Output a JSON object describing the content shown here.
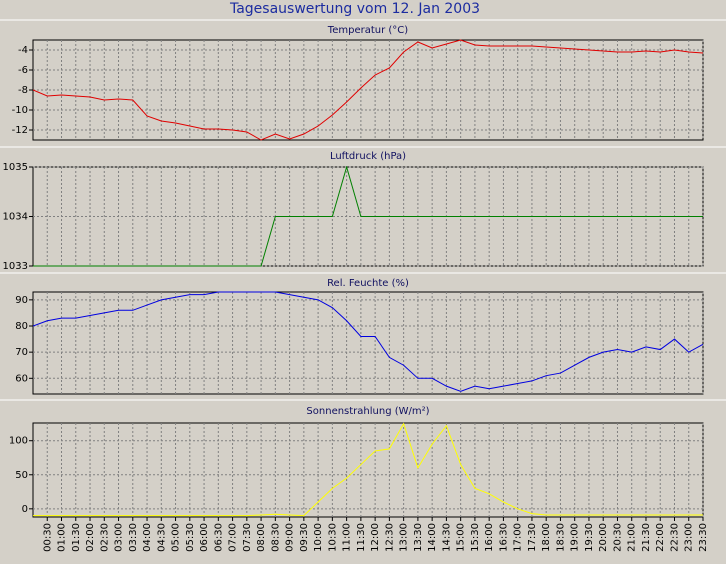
{
  "title": "Tagesauswertung vom 12. Jan 2003",
  "chart_data": [
    {
      "type": "line",
      "title": "Temperatur (°C)",
      "color": "#e00000",
      "grid": true,
      "ylim": [
        -13,
        -3
      ],
      "yticks": [
        -4,
        -6,
        -8,
        -10,
        -12
      ],
      "values": [
        -8,
        -8.6,
        -8.5,
        -8.6,
        -8.7,
        -9.0,
        -8.9,
        -9.0,
        -10.6,
        -11.1,
        -11.3,
        -11.6,
        -11.9,
        -11.9,
        -12.0,
        -12.2,
        -13.0,
        -12.4,
        -12.9,
        -12.4,
        -11.6,
        -10.5,
        -9.2,
        -7.8,
        -6.5,
        -5.8,
        -4.2,
        -3.2,
        -3.8,
        -3.4,
        -3.0,
        -3.5,
        -3.6,
        -3.6,
        -3.6,
        -3.6,
        -3.7,
        -3.8,
        -3.9,
        -4.0,
        -4.1,
        -4.2,
        -4.2,
        -4.1,
        -4.2,
        -4.0,
        -4.2,
        -4.3
      ]
    },
    {
      "type": "line",
      "title": "Luftdruck (hPa)",
      "color": "#008000",
      "grid": true,
      "ylim": [
        1033,
        1035
      ],
      "yticks": [
        1035,
        1034,
        1033
      ],
      "values": [
        1033,
        1033,
        1033,
        1033,
        1033,
        1033,
        1033,
        1033,
        1033,
        1033,
        1033,
        1033,
        1033,
        1033,
        1033,
        1033,
        1033,
        1034,
        1034,
        1034,
        1034,
        1034,
        1035,
        1034,
        1034,
        1034,
        1034,
        1034,
        1034,
        1034,
        1034,
        1034,
        1034,
        1034,
        1034,
        1034,
        1034,
        1034,
        1034,
        1034,
        1034,
        1034,
        1034,
        1034,
        1034,
        1034,
        1034,
        1034
      ]
    },
    {
      "type": "line",
      "title": "Rel. Feuchte (%)",
      "color": "#0000e0",
      "grid": true,
      "ylim": [
        54,
        93
      ],
      "yticks": [
        90,
        80,
        70,
        60
      ],
      "values": [
        80,
        82,
        83,
        83,
        84,
        85,
        86,
        86,
        88,
        90,
        91,
        92,
        92,
        93,
        93,
        93,
        93,
        93,
        92,
        91,
        90,
        87,
        82,
        76,
        76,
        68,
        65,
        60,
        60,
        57,
        55,
        57,
        56,
        57,
        58,
        59,
        61,
        62,
        65,
        68,
        70,
        71,
        70,
        72,
        71,
        75,
        70,
        73
      ]
    },
    {
      "type": "line",
      "title": "Sonnenstrahlung (W/m²)",
      "color": "#ffff00",
      "grid": true,
      "ylim": [
        -12,
        126
      ],
      "yticks": [
        100,
        50,
        0
      ],
      "values": [
        -10,
        -10,
        -10,
        -10,
        -10,
        -10,
        -10,
        -10,
        -10,
        -10,
        -10,
        -10,
        -10,
        -10,
        -10,
        -10,
        -9,
        -8,
        -9,
        -10,
        10,
        30,
        45,
        65,
        85,
        88,
        125,
        60,
        95,
        122,
        65,
        30,
        22,
        10,
        0,
        -7,
        -9,
        -9,
        -9,
        -9,
        -9,
        -9,
        -9,
        -9,
        -9,
        -9,
        -9,
        -9
      ],
      "categories": [
        null,
        "00:30",
        "01:00",
        "01:30",
        "02:00",
        "02:30",
        "03:00",
        "03:30",
        "04:00",
        "04:30",
        "05:00",
        "05:30",
        "06:00",
        "06:30",
        "07:00",
        "07:30",
        "08:00",
        "08:30",
        "09:00",
        "09:30",
        "10:00",
        "10:30",
        "11:00",
        "11:30",
        "12:00",
        "12:30",
        "13:00",
        "13:30",
        "14:00",
        "14:30",
        "15:00",
        "15:30",
        "16:00",
        "16:30",
        "17:00",
        "17:30",
        "18:00",
        "18:30",
        "19:00",
        "19:30",
        "20:00",
        "20:30",
        "21:00",
        "21:30",
        "22:00",
        "22:30",
        "23:00",
        "23:30"
      ]
    }
  ]
}
